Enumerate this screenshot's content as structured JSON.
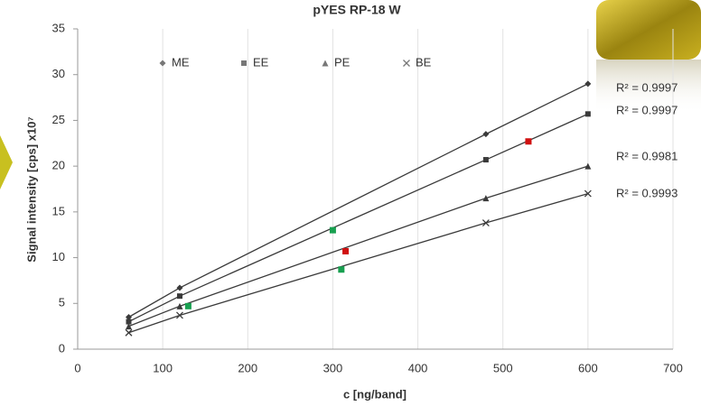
{
  "chart_data": {
    "type": "line",
    "title": "pYES RP-18 W",
    "x_label": "c [ng/band]",
    "y_label": "Signal intensity [cps] x10⁷",
    "xlim": [
      0,
      700
    ],
    "xticks": [
      0,
      100,
      200,
      300,
      400,
      500,
      600,
      700
    ],
    "ylim": [
      0,
      35
    ],
    "yticks": [
      0,
      5,
      10,
      15,
      20,
      25,
      30,
      35
    ],
    "grid": "x",
    "series": [
      {
        "name": "ME",
        "color": "#3a3a3a",
        "marker": "diamond",
        "x": [
          60,
          120,
          480,
          600
        ],
        "values": [
          3.5,
          6.7,
          23.5,
          29
        ]
      },
      {
        "name": "EE",
        "color": "#3a3a3a",
        "marker": "square",
        "x": [
          60,
          120,
          480,
          600
        ],
        "values": [
          3,
          5.8,
          20.7,
          25.7
        ]
      },
      {
        "name": "PE",
        "color": "#3a3a3a",
        "marker": "triangle",
        "x": [
          60,
          120,
          480,
          600
        ],
        "values": [
          2.5,
          4.7,
          16.5,
          20
        ]
      },
      {
        "name": "BE",
        "color": "#3a3a3a",
        "marker": "cross",
        "x": [
          60,
          120,
          480,
          600
        ],
        "values": [
          1.8,
          3.7,
          13.8,
          17
        ]
      }
    ],
    "highlights": {
      "x": [
        530,
        300,
        315,
        310,
        130
      ],
      "values": [
        22.7,
        13,
        10.7,
        8.7,
        4.7
      ],
      "colors": [
        "#d01010",
        "#18a050",
        "#d01010",
        "#18a050",
        "#18a050"
      ]
    },
    "annotations": [
      "R² = 0.9997",
      "R² = 0.9997",
      "R² = 0.9981",
      "R² = 0.9993"
    ]
  }
}
